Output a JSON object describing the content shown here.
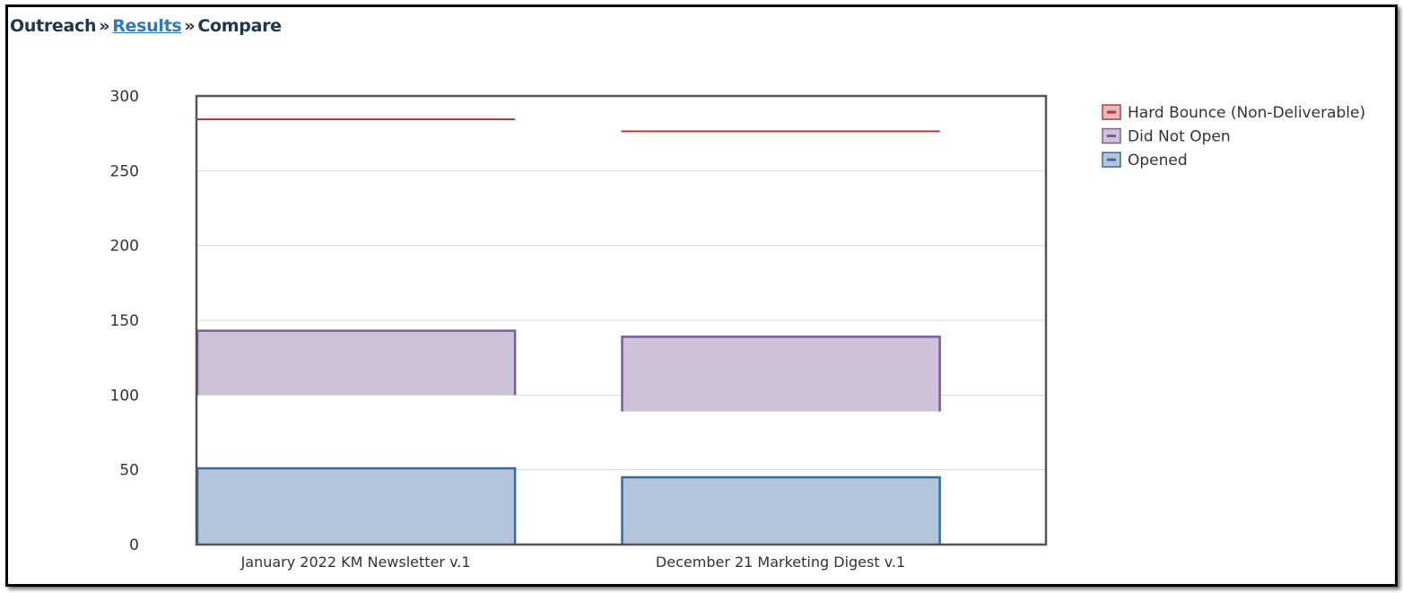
{
  "breadcrumb": {
    "root": "Outreach",
    "separator": "»",
    "link": "Results",
    "current": "Compare"
  },
  "chart_data": {
    "type": "bar",
    "categories": [
      "January 2022 KM Newsletter v.1",
      "December 21 Marketing Digest v.1"
    ],
    "ylim": [
      0,
      300
    ],
    "yticks": [
      0,
      50,
      100,
      150,
      200,
      250,
      300
    ],
    "grid": true,
    "legend_position": "right",
    "series": [
      {
        "name": "Hard Bounce (Non-Deliverable)",
        "color": "#b03a3a",
        "fill": "#e8b8b8",
        "ranges": [
          [
            284,
            285
          ],
          [
            276,
            277
          ]
        ]
      },
      {
        "name": "Did Not Open",
        "color": "#7a5e99",
        "fill": "#cdc2d8",
        "ranges": [
          [
            100,
            143
          ],
          [
            89,
            139
          ]
        ]
      },
      {
        "name": "Opened",
        "color": "#3c6a9a",
        "fill": "#b2c5da",
        "ranges": [
          [
            0,
            51
          ],
          [
            0,
            45
          ]
        ]
      }
    ]
  }
}
